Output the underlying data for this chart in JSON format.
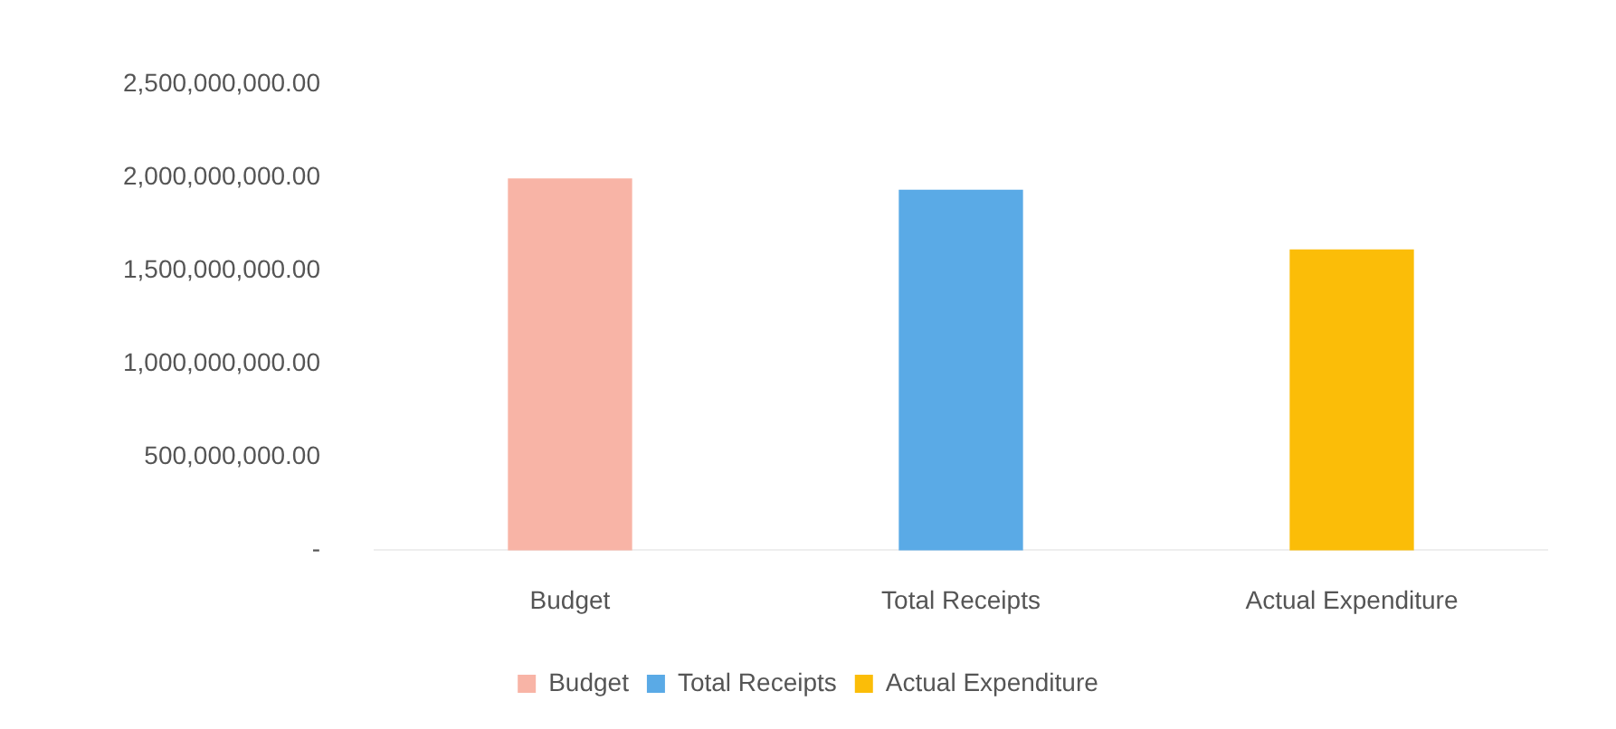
{
  "chart_data": {
    "type": "bar",
    "categories": [
      "Budget",
      "Total Receipts",
      "Actual Expenditure"
    ],
    "series": [
      {
        "name": "Budget",
        "color": "#f8b4a6",
        "values": [
          1990000000,
          null,
          null
        ]
      },
      {
        "name": "Total Receipts",
        "color": "#5aaae6",
        "values": [
          null,
          1930000000,
          null
        ]
      },
      {
        "name": "Actual Expenditure",
        "color": "#fbbd08",
        "values": [
          null,
          null,
          1610000000
        ]
      }
    ],
    "ylim": [
      0,
      2500000000
    ],
    "yticks": [
      {
        "value": 0,
        "label": "-"
      },
      {
        "value": 500000000,
        "label": "500,000,000.00"
      },
      {
        "value": 1000000000,
        "label": "1,000,000,000.00"
      },
      {
        "value": 1500000000,
        "label": "1,500,000,000.00"
      },
      {
        "value": 2000000000,
        "label": "2,000,000,000.00"
      },
      {
        "value": 2500000000,
        "label": "2,500,000,000.00"
      }
    ],
    "grid": false,
    "legend": "bottom"
  }
}
